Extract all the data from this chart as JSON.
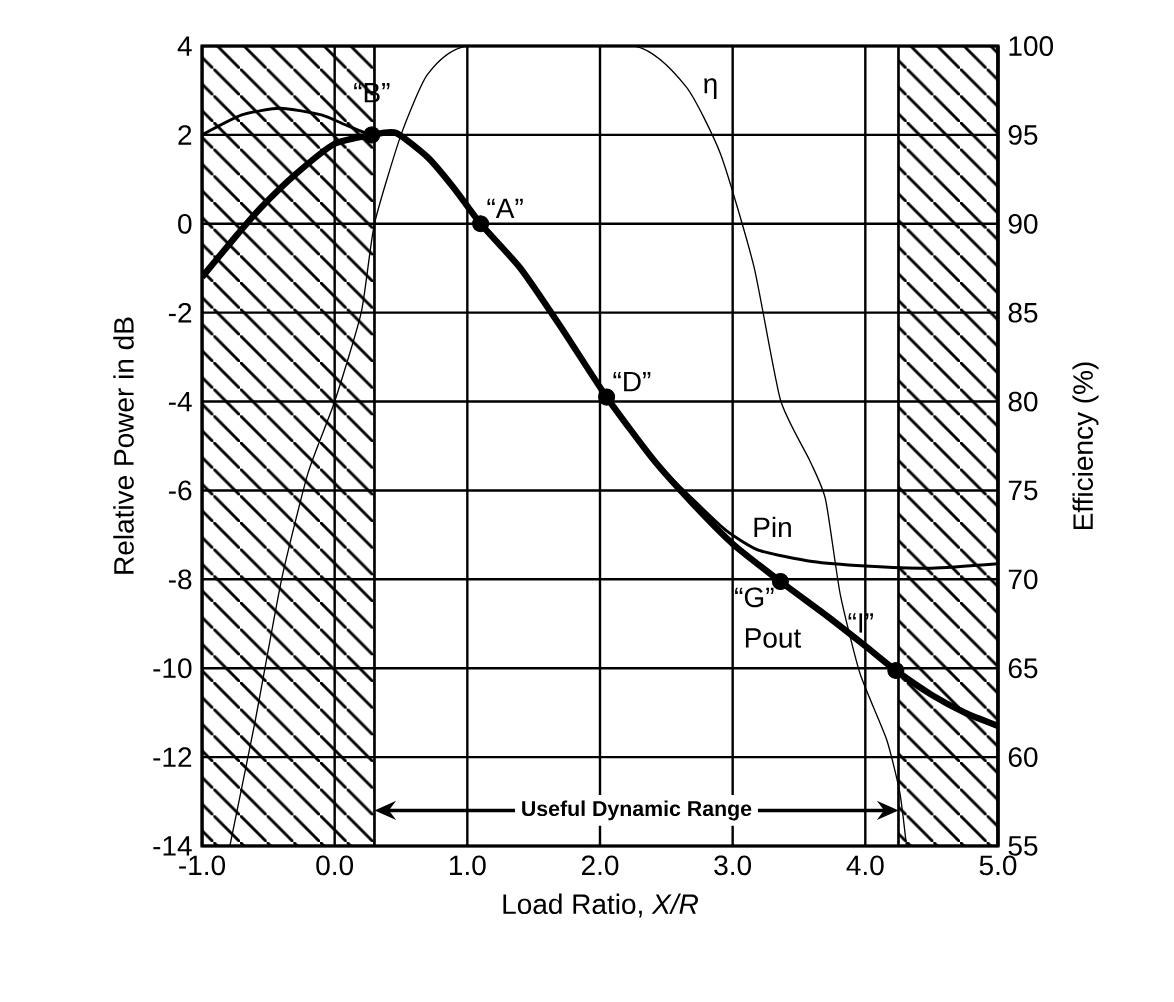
{
  "chart_data": {
    "type": "line",
    "xlabel": "Load Ratio, *X/R*",
    "ylabel": "Relative Power in dB",
    "y2label": "Efficiency (%)",
    "xlim": [
      -1,
      5
    ],
    "ylim": [
      -14,
      4
    ],
    "y2lim": [
      55,
      100
    ],
    "xticks": [
      {
        "value": -1,
        "label": "-1.0"
      },
      {
        "value": 0,
        "label": "0.0"
      },
      {
        "value": 1,
        "label": "1.0"
      },
      {
        "value": 2,
        "label": "2.0"
      },
      {
        "value": 3,
        "label": "3.0"
      },
      {
        "value": 4,
        "label": "4.0"
      },
      {
        "value": 5,
        "label": "5.0"
      }
    ],
    "yticks": [
      -14,
      -12,
      -10,
      -8,
      -6,
      -4,
      -2,
      0,
      2,
      4
    ],
    "y2ticks": [
      55,
      60,
      65,
      70,
      75,
      80,
      85,
      90,
      95,
      100
    ],
    "grid": true,
    "series": [
      {
        "name": "Pin",
        "color": "#000000",
        "x": [
          -1,
          -0.7,
          -0.41,
          -0.1,
          0.1,
          0.28,
          0.46,
          0.7,
          0.9,
          1.1,
          1.4,
          1.7,
          2.05,
          2.4,
          2.7,
          2.95,
          3.2,
          3.6,
          4.0,
          4.5,
          5.0
        ],
        "values": [
          2.0,
          2.45,
          2.6,
          2.45,
          2.2,
          2.0,
          2.05,
          1.5,
          0.8,
          0,
          -1.0,
          -2.3,
          -3.9,
          -5.3,
          -6.2,
          -6.9,
          -7.35,
          -7.6,
          -7.7,
          -7.75,
          -7.65
        ]
      },
      {
        "name": "Pout",
        "color": "#000000",
        "x": [
          -1,
          -0.75,
          -0.56,
          -0.3,
          0,
          0.28,
          0.46,
          0.7,
          0.9,
          1.1,
          1.4,
          1.7,
          2.05,
          2.4,
          2.7,
          3.0,
          3.36,
          3.7,
          4.0,
          4.23,
          4.5,
          4.75,
          5.0
        ],
        "values": [
          -1.2,
          -0.3,
          0.35,
          1.1,
          1.8,
          2.0,
          2.05,
          1.5,
          0.8,
          0,
          -1.0,
          -2.3,
          -3.9,
          -5.3,
          -6.3,
          -7.2,
          -8.05,
          -8.8,
          -9.5,
          -10.05,
          -10.6,
          -11.0,
          -11.3
        ]
      },
      {
        "name": "η",
        "color": "#000000",
        "axis": "y2",
        "x": [
          -0.79,
          -0.6,
          -0.4,
          -0.2,
          0.0,
          0.2,
          0.3,
          0.5,
          0.7,
          1.0,
          2.26,
          2.65,
          2.91,
          3.16,
          3.36,
          3.58,
          3.7,
          3.81,
          3.96,
          4.16,
          4.26,
          4.31
        ],
        "values": [
          55,
          62,
          70,
          76,
          80,
          85,
          90,
          95,
          98.4,
          100,
          100,
          97.7,
          93.9,
          87.6,
          80.1,
          76.7,
          74.5,
          69.2,
          64.7,
          61,
          58,
          55
        ]
      },
      {
        "type": "scatter",
        "marker": "circle",
        "color": "#000000",
        "x": [
          0.28,
          1.1,
          2.05,
          3.36,
          4.23
        ],
        "values": [
          2.0,
          0,
          -3.9,
          -8.05,
          -10.05
        ]
      }
    ],
    "bands": [
      {
        "axis": "x",
        "from": -1,
        "to": 0.3,
        "color": "#000000"
      },
      {
        "axis": "x",
        "from": 4.25,
        "to": 5,
        "color": "#000000"
      }
    ],
    "annotations": [
      {
        "text": "“B”",
        "x": 0.28,
        "y": 2.0
      },
      {
        "text": "“A”",
        "x": 1.1,
        "y": 0
      },
      {
        "text": "“D”",
        "x": 2.05,
        "y": -3.9
      },
      {
        "text": "“G”",
        "x": 3.36,
        "y": -8.05
      },
      {
        "text": "“I”",
        "x": 4.23,
        "y": -10.05
      },
      {
        "text": "Useful Dynamic Range",
        "x": 0.3,
        "y": -13.2
      }
    ]
  }
}
